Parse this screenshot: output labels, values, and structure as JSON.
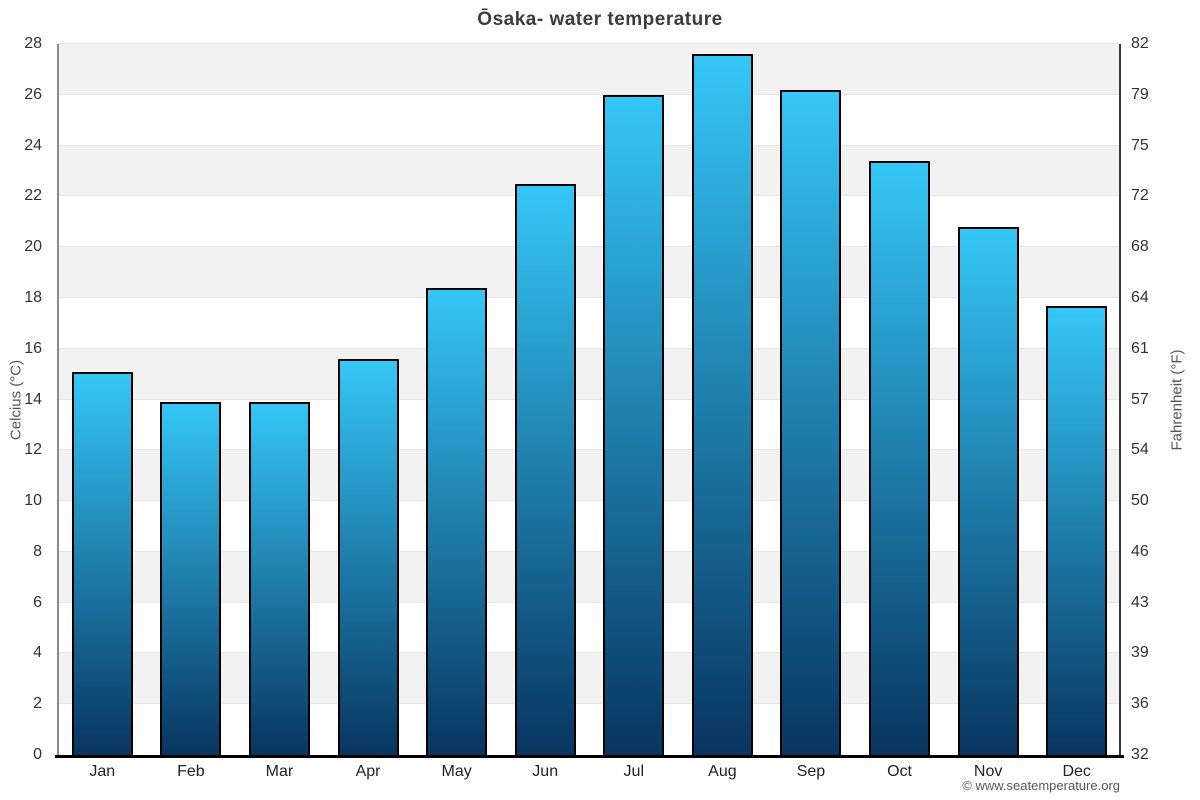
{
  "title": "Ōsaka- water temperature",
  "attribution": "© www.seatemperature.org",
  "chart_data": {
    "type": "bar",
    "title": "Ōsaka- water temperature",
    "categories": [
      "Jan",
      "Feb",
      "Mar",
      "Apr",
      "May",
      "Jun",
      "Jul",
      "Aug",
      "Sep",
      "Oct",
      "Nov",
      "Dec"
    ],
    "values": [
      15.1,
      13.9,
      13.9,
      15.6,
      18.4,
      22.5,
      26,
      27.6,
      26.2,
      23.4,
      20.8,
      17.7
    ],
    "series_name": "water temperature",
    "xlabel": "",
    "ylabel": "Celcius (°C)",
    "ylabel_right": "Fahrenheit (°F)",
    "ylim": [
      0,
      28
    ],
    "yticks": [
      0,
      2,
      4,
      6,
      8,
      10,
      12,
      14,
      16,
      18,
      20,
      22,
      24,
      26,
      28
    ],
    "yticks_right": [
      "32",
      "36",
      "39",
      "43",
      "46",
      "50",
      "54",
      "57",
      "61",
      "64",
      "68",
      "72",
      "75",
      "79",
      "82"
    ],
    "grid": "alternating horizontal bands every 2°C",
    "legend": "none",
    "colors": {
      "bar_gradient_top": "#35c7f7",
      "bar_gradient_bottom": "#083560",
      "bar_border": "#000000",
      "band_gray": "#f2f2f2",
      "band_white": "#ffffff",
      "gridline": "#e7e7e7",
      "title_text": "#3c3c3c",
      "tick_text": "#333333",
      "axis_title_text": "#555555"
    }
  }
}
